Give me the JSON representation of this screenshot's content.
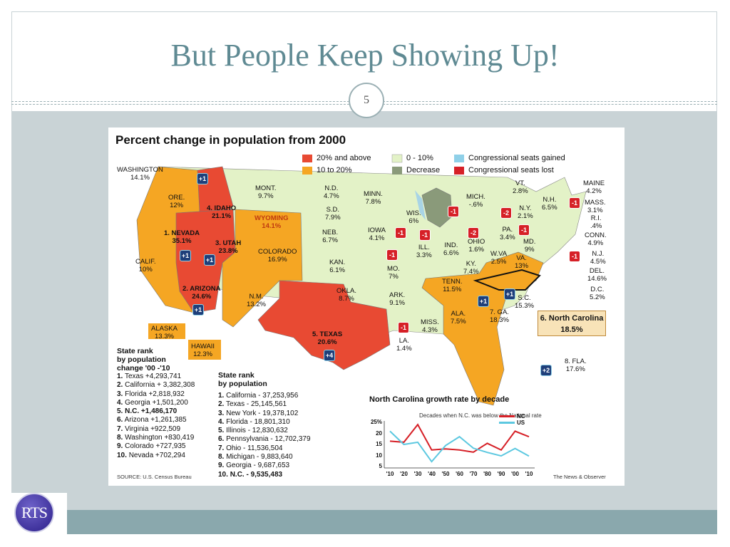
{
  "slide": {
    "title": "But People Keep Showing Up!",
    "number": "5",
    "logo_text": "RTS"
  },
  "map": {
    "title": "Percent change in population from 2000",
    "legend": {
      "items": [
        {
          "label": "20% and above",
          "color": "#e84a33"
        },
        {
          "label": "10 to 20%",
          "color": "#f5a623"
        },
        {
          "label": "0 - 10%",
          "color": "#e3f2c7"
        },
        {
          "label": "Decrease",
          "color": "#8a9a7a"
        },
        {
          "label": "Congressional seats gained",
          "color": "#8fd0e8"
        },
        {
          "label": "Congressional seats lost",
          "color": "#d62027"
        }
      ]
    },
    "states": {
      "washington": {
        "name": "WASHINGTON",
        "pct": "14.1%"
      },
      "oregon": {
        "name": "ORE.",
        "pct": "12%"
      },
      "idaho": {
        "name": "4. IDAHO",
        "pct": "21.1%"
      },
      "montana": {
        "name": "MONT.",
        "pct": "9.7%"
      },
      "nd": {
        "name": "N.D.",
        "pct": "4.7%"
      },
      "minn": {
        "name": "MINN.",
        "pct": "7.8%"
      },
      "mich": {
        "name": "MICH.",
        "pct": "-.6%"
      },
      "vt": {
        "name": "VT.",
        "pct": "2.8%"
      },
      "maine": {
        "name": "MAINE",
        "pct": "4.2%"
      },
      "nh": {
        "name": "N.H.",
        "pct": "6.5%"
      },
      "mass": {
        "name": "MASS.",
        "pct": "3.1%"
      },
      "ri": {
        "name": "R.I.",
        "pct": ".4%"
      },
      "conn": {
        "name": "CONN.",
        "pct": "4.9%"
      },
      "nj": {
        "name": "N.J.",
        "pct": "4.5%"
      },
      "del": {
        "name": "DEL.",
        "pct": "14.6%"
      },
      "dc": {
        "name": "D.C.",
        "pct": "5.2%"
      },
      "ny": {
        "name": "N.Y.",
        "pct": "2.1%"
      },
      "pa": {
        "name": "PA.",
        "pct": "3.4%"
      },
      "md": {
        "name": "MD.",
        "pct": "9%"
      },
      "wis": {
        "name": "WIS.",
        "pct": "6%"
      },
      "sd": {
        "name": "S.D.",
        "pct": "7.9%"
      },
      "wyoming": {
        "name": "WYOMING",
        "pct": "14.1%"
      },
      "nevada": {
        "name": "1. NEVADA",
        "pct": "35.1%"
      },
      "utah": {
        "name": "3. UTAH",
        "pct": "23.8%"
      },
      "colorado": {
        "name": "COLORADO",
        "pct": "16.9%"
      },
      "neb": {
        "name": "NEB.",
        "pct": "6.7%"
      },
      "iowa": {
        "name": "IOWA",
        "pct": "4.1%"
      },
      "ill": {
        "name": "ILL.",
        "pct": "3.3%"
      },
      "ind": {
        "name": "IND.",
        "pct": "6.6%"
      },
      "ohio": {
        "name": "OHIO",
        "pct": "1.6%"
      },
      "wva": {
        "name": "W.VA",
        "pct": "2.5%"
      },
      "va": {
        "name": "VA.",
        "pct": "13%"
      },
      "calif": {
        "name": "CALIF.",
        "pct": "10%"
      },
      "kan": {
        "name": "KAN.",
        "pct": "6.1%"
      },
      "mo": {
        "name": "MO.",
        "pct": "7%"
      },
      "ky": {
        "name": "KY.",
        "pct": "7.4%"
      },
      "arizona": {
        "name": "2. ARIZONA",
        "pct": "24.6%"
      },
      "nm": {
        "name": "N.M.",
        "pct": "13.2%"
      },
      "okla": {
        "name": "OKLA.",
        "pct": "8.7%"
      },
      "ark": {
        "name": "ARK.",
        "pct": "9.1%"
      },
      "tenn": {
        "name": "TENN.",
        "pct": "11.5%"
      },
      "sc": {
        "name": "S.C.",
        "pct": "15.3%"
      },
      "ga": {
        "name": "7. GA.",
        "pct": "18.3%"
      },
      "ala": {
        "name": "ALA.",
        "pct": "7.5%"
      },
      "miss": {
        "name": "MISS.",
        "pct": "4.3%"
      },
      "la": {
        "name": "LA.",
        "pct": "1.4%"
      },
      "texas": {
        "name": "5. TEXAS",
        "pct": "20.6%"
      },
      "alaska": {
        "name": "ALASKA",
        "pct": "13.3%"
      },
      "hawaii": {
        "name": "HAWAII",
        "pct": "12.3%"
      },
      "fla": {
        "name": "8. FLA.",
        "pct": "17.6%"
      }
    },
    "nc_box": {
      "name": "6. North Carolina",
      "pct": "18.5%"
    },
    "seats": {
      "gain_one": "+1",
      "gain_two": "+2",
      "gain_four": "+4",
      "lost_one": "-1",
      "lost_two": "-2"
    },
    "rank_change": {
      "heading_1": "State rank",
      "heading_2": "by population",
      "heading_3": "change '00 -'10",
      "items": [
        {
          "num": "1.",
          "text": "Texas +4,293,741"
        },
        {
          "num": "2.",
          "text": "California + 3,382,308"
        },
        {
          "num": "3.",
          "text": "Florida +2,818,932"
        },
        {
          "num": "4.",
          "text": "Georgia +1,501,200"
        },
        {
          "num": "5.",
          "text": "N.C. +1,486,170"
        },
        {
          "num": "6.",
          "text": "Arizona +1,261,385"
        },
        {
          "num": "7.",
          "text": "Virginia +922,509"
        },
        {
          "num": "8.",
          "text": "Washington +830,419"
        },
        {
          "num": "9.",
          "text": "Colorado +727,935"
        },
        {
          "num": "10.",
          "text": "Nevada +702,294"
        }
      ]
    },
    "rank_population": {
      "heading_1": "State rank",
      "heading_2": "by population",
      "items": [
        {
          "num": "1.",
          "text": "California - 37,253,956"
        },
        {
          "num": "2.",
          "text": "Texas  - 25,145,561"
        },
        {
          "num": "3.",
          "text": "New York  - 19,378,102"
        },
        {
          "num": "4.",
          "text": "Florida - 18,801,310"
        },
        {
          "num": "5.",
          "text": "Illinois  - 12,830,632"
        },
        {
          "num": "6.",
          "text": "Pennsylvania - 12,702,379"
        },
        {
          "num": "7.",
          "text": "Ohio - 11,536,504"
        },
        {
          "num": "8.",
          "text": "Michigan - 9,883,640"
        },
        {
          "num": "9.",
          "text": "Georgia - 9,687,653"
        },
        {
          "num": "10.",
          "text": "N.C. - 9,535,483"
        }
      ]
    },
    "source": "SOURCE: U.S. Census Bureau",
    "credit": "The News & Observer"
  },
  "chart_data": {
    "type": "line",
    "title": "North Carolina growth rate by decade",
    "annotation": "Decades when N.C. was below the National rate",
    "categories": [
      "'10",
      "'20",
      "'30",
      "'40",
      "'50",
      "'60",
      "'70",
      "'80",
      "'90",
      "'00",
      "'10"
    ],
    "series": [
      {
        "name": "NC",
        "color": "#d62027",
        "values": [
          16.5,
          16,
          24,
          12.5,
          13,
          12.5,
          11.5,
          15.5,
          12.5,
          21,
          18.5
        ]
      },
      {
        "name": "US",
        "color": "#5cc8e0",
        "values": [
          21,
          15,
          16,
          7.2,
          14.5,
          18.5,
          13.3,
          11.4,
          9.8,
          13.2,
          9.7
        ]
      }
    ],
    "yticks": [
      "25%",
      "20",
      "15",
      "10",
      "5"
    ],
    "ylim": [
      5,
      25
    ]
  }
}
